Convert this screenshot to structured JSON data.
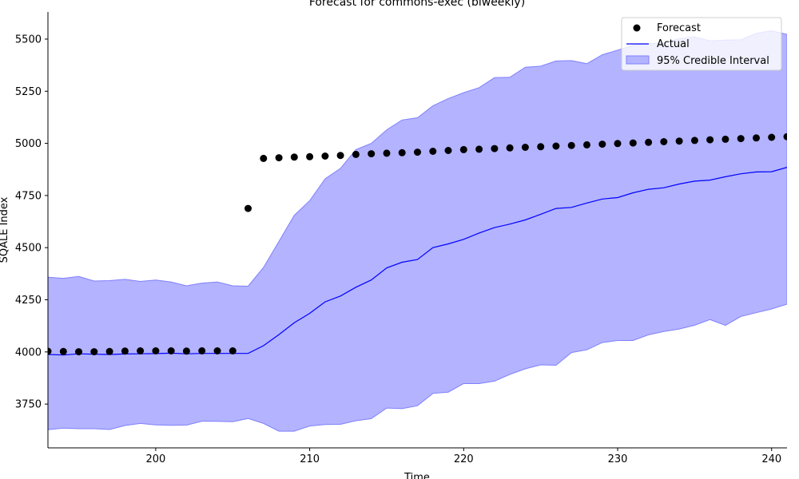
{
  "chart_data": {
    "type": "line",
    "title": "Forecast for commons-exec (biweekly)",
    "xlabel": "Time",
    "ylabel": "SQALE Index",
    "xlim": [
      193,
      241
    ],
    "ylim": [
      3540,
      5630
    ],
    "xticks": [
      200,
      210,
      220,
      230,
      240
    ],
    "yticks": [
      3750,
      4000,
      4250,
      4500,
      4750,
      5000,
      5250,
      5500
    ],
    "legend_position": "top-right",
    "legend": {
      "forecast": "Forecast",
      "actual": "Actual",
      "interval": "95% Credible Interval"
    },
    "colors": {
      "forecast": "#000000",
      "actual": "#0000ff",
      "interval_fill": "#b3b3ff",
      "interval_edge": "#8080ff"
    },
    "x": [
      193,
      194,
      195,
      196,
      197,
      198,
      199,
      200,
      201,
      202,
      203,
      204,
      205,
      206,
      207,
      208,
      209,
      210,
      211,
      212,
      213,
      214,
      215,
      216,
      217,
      218,
      219,
      220,
      221,
      222,
      223,
      224,
      225,
      226,
      227,
      228,
      229,
      230,
      231,
      232,
      233,
      234,
      235,
      236,
      237,
      238,
      239,
      240,
      241
    ],
    "forecast_x": [
      193,
      194,
      195,
      196,
      197,
      198,
      199,
      200,
      201,
      202,
      203,
      204,
      205,
      206,
      207,
      208,
      209,
      210,
      211,
      212,
      213,
      214,
      215,
      216,
      217,
      218,
      219,
      220,
      221,
      222,
      223,
      224,
      225,
      226,
      227,
      228,
      229,
      230,
      231,
      232,
      233,
      234,
      235,
      236,
      237,
      238,
      239,
      240,
      241
    ],
    "forecast": [
      4003,
      4002,
      4001,
      4001,
      4002,
      4004,
      4005,
      4005,
      4005,
      4004,
      4005,
      4005,
      4005,
      4688,
      4928,
      4931,
      4934,
      4936,
      4939,
      4942,
      4947,
      4950,
      4953,
      4955,
      4958,
      4962,
      4966,
      4970,
      4972,
      4975,
      4978,
      4981,
      4984,
      4987,
      4990,
      4993,
      4996,
      4999,
      5002,
      5005,
      5008,
      5011,
      5014,
      5017,
      5020,
      5023,
      5026,
      5029,
      5032
    ],
    "actual": [
      3988,
      3985,
      3991,
      3989,
      3988,
      3990,
      3991,
      3992,
      3994,
      3991,
      3993,
      3993,
      3993,
      3993,
      4030,
      4083,
      4140,
      4185,
      4240,
      4268,
      4310,
      4345,
      4403,
      4430,
      4443,
      4500,
      4518,
      4540,
      4570,
      4596,
      4613,
      4633,
      4660,
      4688,
      4693,
      4714,
      4733,
      4740,
      4763,
      4780,
      4787,
      4805,
      4819,
      4824,
      4840,
      4854,
      4863,
      4864,
      4885
    ],
    "upper": [
      4358,
      4353,
      4362,
      4340,
      4342,
      4348,
      4338,
      4345,
      4335,
      4317,
      4330,
      4335,
      4317,
      4315,
      4405,
      4530,
      4655,
      4725,
      4830,
      4880,
      4970,
      5000,
      5065,
      5112,
      5123,
      5180,
      5215,
      5243,
      5267,
      5315,
      5317,
      5365,
      5370,
      5395,
      5397,
      5382,
      5425,
      5447,
      5470,
      5478,
      5482,
      5502,
      5510,
      5492,
      5495,
      5497,
      5527,
      5540,
      5522
    ],
    "lower": [
      3627,
      3635,
      3632,
      3632,
      3628,
      3647,
      3657,
      3650,
      3648,
      3649,
      3668,
      3667,
      3665,
      3681,
      3657,
      3620,
      3620,
      3645,
      3652,
      3653,
      3670,
      3680,
      3731,
      3728,
      3742,
      3801,
      3807,
      3848,
      3848,
      3860,
      3892,
      3919,
      3938,
      3936,
      3997,
      4010,
      4045,
      4055,
      4055,
      4082,
      4098,
      4110,
      4128,
      4155,
      4127,
      4170,
      4188,
      4206,
      4229
    ]
  }
}
